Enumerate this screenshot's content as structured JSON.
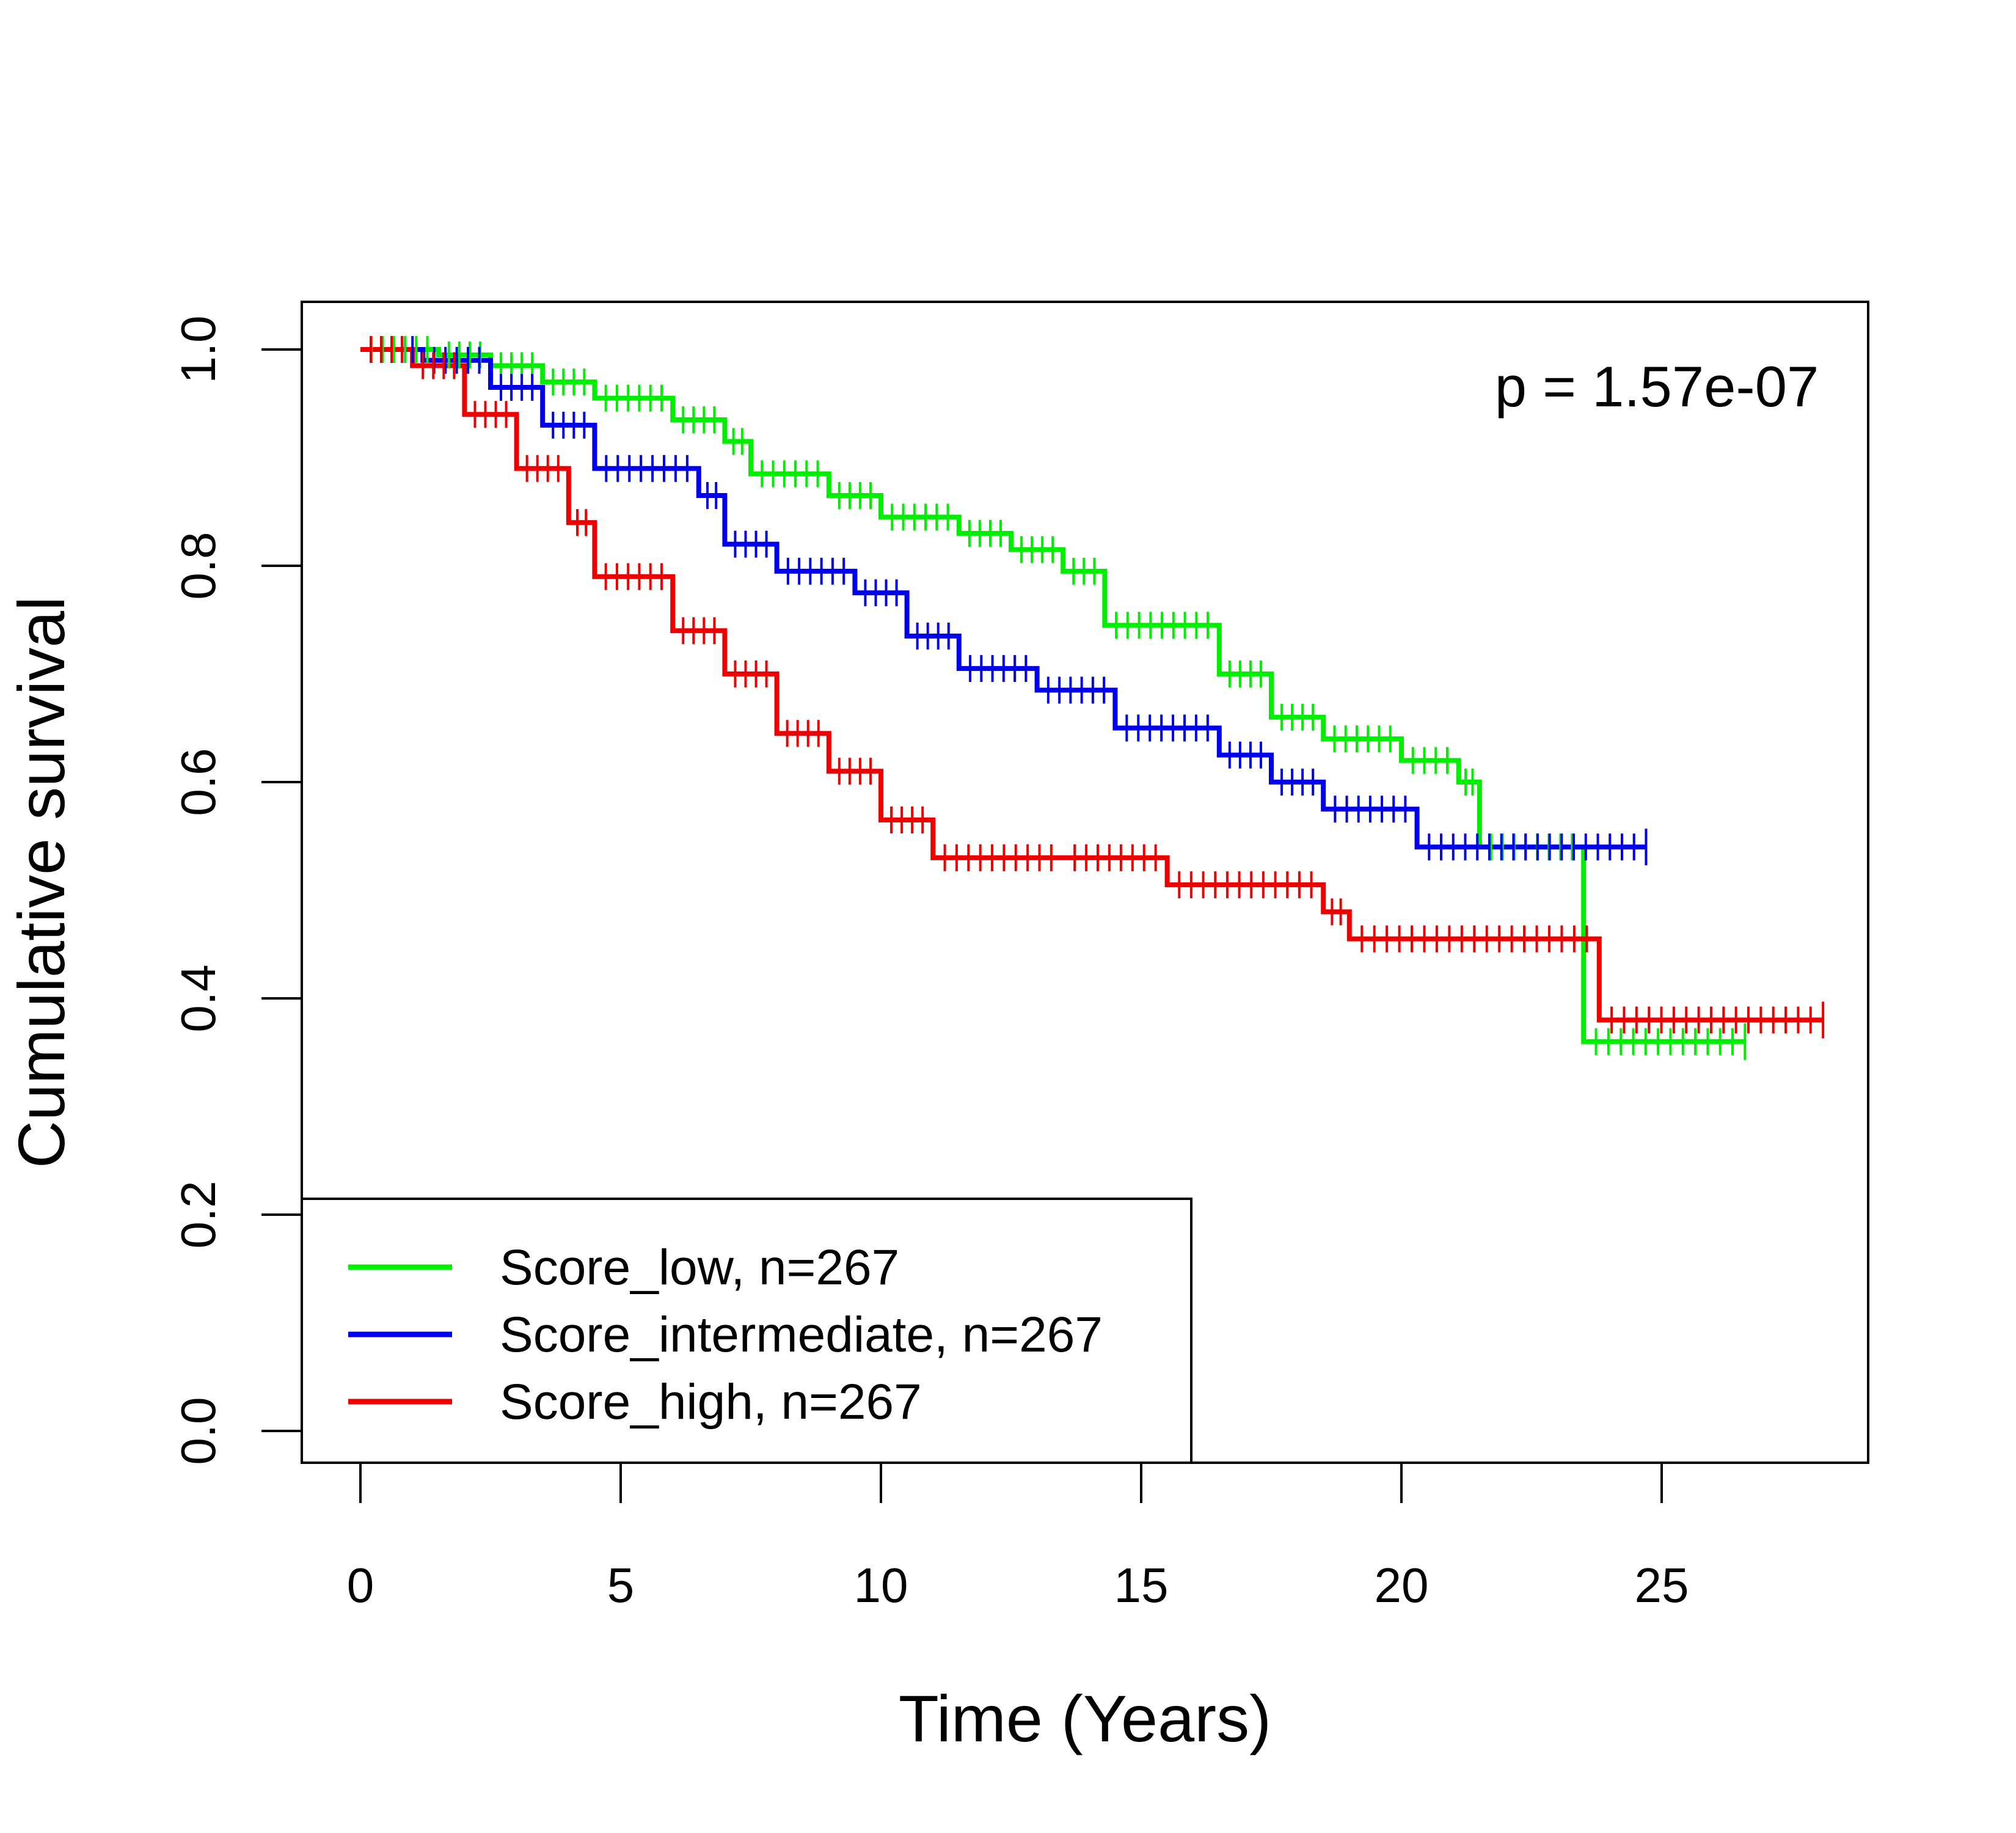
{
  "chart_data": {
    "type": "line",
    "subtype": "kaplan-meier",
    "title": "",
    "xlabel": "Time (Years)",
    "ylabel": "Cumulative survival",
    "xlim": [
      0,
      29
    ],
    "ylim": [
      0,
      1.0
    ],
    "xticks": [
      0,
      5,
      10,
      15,
      20,
      25
    ],
    "yticks": [
      0.0,
      0.2,
      0.4,
      0.6,
      0.8,
      1.0
    ],
    "xtick_labels": [
      "0",
      "5",
      "10",
      "15",
      "20",
      "25"
    ],
    "ytick_labels": [
      "0.0",
      "0.2",
      "0.4",
      "0.6",
      "0.8",
      "1.0"
    ],
    "grid": false,
    "legend_position": "bottom-left",
    "annotation": "p = 1.57e-07",
    "series": [
      {
        "name": "Score_low, n=267",
        "color": "#00ee00",
        "x": [
          0,
          1.5,
          2.5,
          3.5,
          4.5,
          6,
          7,
          7.5,
          9,
          10,
          11.5,
          12.5,
          13.5,
          14.3,
          16.5,
          17.5,
          18.5,
          20,
          21.1,
          21.5,
          23.5,
          26.6
        ],
        "y": [
          1.0,
          0.995,
          0.985,
          0.97,
          0.955,
          0.935,
          0.915,
          0.885,
          0.865,
          0.845,
          0.83,
          0.815,
          0.795,
          0.745,
          0.7,
          0.66,
          0.64,
          0.62,
          0.6,
          0.54,
          0.36,
          0.36
        ]
      },
      {
        "name": "Score_intermediate, n=267",
        "color": "#0000ee",
        "x": [
          0,
          1.2,
          2.5,
          3.5,
          4.5,
          6.5,
          7,
          8,
          9.5,
          10.5,
          11.5,
          13,
          14.5,
          16.5,
          17.5,
          18.5,
          20.3,
          24.7
        ],
        "y": [
          1.0,
          0.99,
          0.965,
          0.93,
          0.89,
          0.865,
          0.82,
          0.795,
          0.775,
          0.735,
          0.705,
          0.685,
          0.65,
          0.625,
          0.6,
          0.575,
          0.54,
          0.54
        ]
      },
      {
        "name": "Score_high, n=267",
        "color": "#ee0000",
        "x": [
          0,
          1,
          2,
          3,
          4,
          4.5,
          6,
          7,
          8,
          9,
          10,
          11,
          13.5,
          15.5,
          18.5,
          19,
          23.8,
          28.1
        ],
        "y": [
          1.0,
          0.985,
          0.94,
          0.89,
          0.84,
          0.79,
          0.74,
          0.7,
          0.645,
          0.61,
          0.565,
          0.53,
          0.53,
          0.505,
          0.48,
          0.455,
          0.38,
          0.38
        ]
      }
    ]
  }
}
